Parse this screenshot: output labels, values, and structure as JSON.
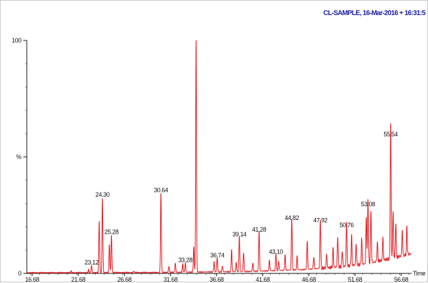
{
  "chart_data": {
    "type": "line",
    "title": "CL-SAMPLE, 16-Mar-2016 + 16:31:5",
    "xlabel": "Time",
    "ylabel": "%",
    "xlim": [
      16.1,
      57.8
    ],
    "ylim": [
      0,
      100
    ],
    "x_ticks": [
      "16.68",
      "21.68",
      "26.68",
      "31.68",
      "36.68",
      "41.68",
      "46.68",
      "51.68",
      "56.68"
    ],
    "y_ticks": [
      "0",
      "%",
      "100"
    ],
    "series": [
      {
        "peaks": [
          {
            "x": 20.9,
            "y": 0.7
          },
          {
            "x": 22.8,
            "y": 1.2
          },
          {
            "x": 23.12,
            "y": 3.0,
            "label": "23.12"
          },
          {
            "x": 23.95,
            "y": 22.0
          },
          {
            "x": 24.3,
            "y": 32.0,
            "label": "24.30"
          },
          {
            "x": 25.05,
            "y": 12.0
          },
          {
            "x": 25.28,
            "y": 16.0,
            "label": "25.28"
          },
          {
            "x": 27.7,
            "y": 0.6
          },
          {
            "x": 30.64,
            "y": 34.0,
            "label": "30.64"
          },
          {
            "x": 31.5,
            "y": 2.5
          },
          {
            "x": 32.2,
            "y": 3.8
          },
          {
            "x": 33.0,
            "y": 3.5
          },
          {
            "x": 33.28,
            "y": 4.0,
            "label": "33.28"
          },
          {
            "x": 34.2,
            "y": 11.0
          },
          {
            "x": 34.45,
            "y": 100.0
          },
          {
            "x": 36.4,
            "y": 4.5
          },
          {
            "x": 36.74,
            "y": 6.0,
            "label": "36.74"
          },
          {
            "x": 37.3,
            "y": 2.5
          },
          {
            "x": 38.3,
            "y": 9.5
          },
          {
            "x": 38.8,
            "y": 4.0
          },
          {
            "x": 39.14,
            "y": 15.0,
            "label": "39.14"
          },
          {
            "x": 39.6,
            "y": 8.0
          },
          {
            "x": 40.6,
            "y": 3.5
          },
          {
            "x": 41.28,
            "y": 17.0,
            "label": "41.28"
          },
          {
            "x": 42.4,
            "y": 4.5
          },
          {
            "x": 43.1,
            "y": 7.5,
            "label": "43.10"
          },
          {
            "x": 43.4,
            "y": 4.0
          },
          {
            "x": 44.1,
            "y": 6.5
          },
          {
            "x": 44.82,
            "y": 22.0,
            "label": "44.82"
          },
          {
            "x": 45.4,
            "y": 6.0
          },
          {
            "x": 46.5,
            "y": 12.0
          },
          {
            "x": 47.2,
            "y": 5.0
          },
          {
            "x": 47.92,
            "y": 21.0,
            "label": "47.92"
          },
          {
            "x": 48.6,
            "y": 6.0
          },
          {
            "x": 49.3,
            "y": 8.0
          },
          {
            "x": 49.8,
            "y": 13.0
          },
          {
            "x": 50.3,
            "y": 7.0
          },
          {
            "x": 50.76,
            "y": 19.0,
            "label": "50.76"
          },
          {
            "x": 51.3,
            "y": 13.0
          },
          {
            "x": 51.8,
            "y": 9.0
          },
          {
            "x": 52.4,
            "y": 11.0
          },
          {
            "x": 52.9,
            "y": 20.0
          },
          {
            "x": 53.08,
            "y": 28.0,
            "label": "53.08"
          },
          {
            "x": 53.4,
            "y": 22.0
          },
          {
            "x": 54.1,
            "y": 8.0
          },
          {
            "x": 54.7,
            "y": 10.0
          },
          {
            "x": 55.54,
            "y": 58.0,
            "label": "55.54"
          },
          {
            "x": 55.8,
            "y": 20.0
          },
          {
            "x": 56.1,
            "y": 15.0
          },
          {
            "x": 56.8,
            "y": 11.0
          },
          {
            "x": 57.3,
            "y": 12.0
          }
        ],
        "baseline": [
          {
            "x": 16.1,
            "y": 0.3
          },
          {
            "x": 30.0,
            "y": 0.4
          },
          {
            "x": 40.0,
            "y": 0.8
          },
          {
            "x": 46.0,
            "y": 1.6
          },
          {
            "x": 50.0,
            "y": 2.8
          },
          {
            "x": 53.0,
            "y": 4.2
          },
          {
            "x": 56.0,
            "y": 6.8
          },
          {
            "x": 57.8,
            "y": 8.5
          }
        ]
      }
    ],
    "grid": false,
    "legend": "none"
  }
}
